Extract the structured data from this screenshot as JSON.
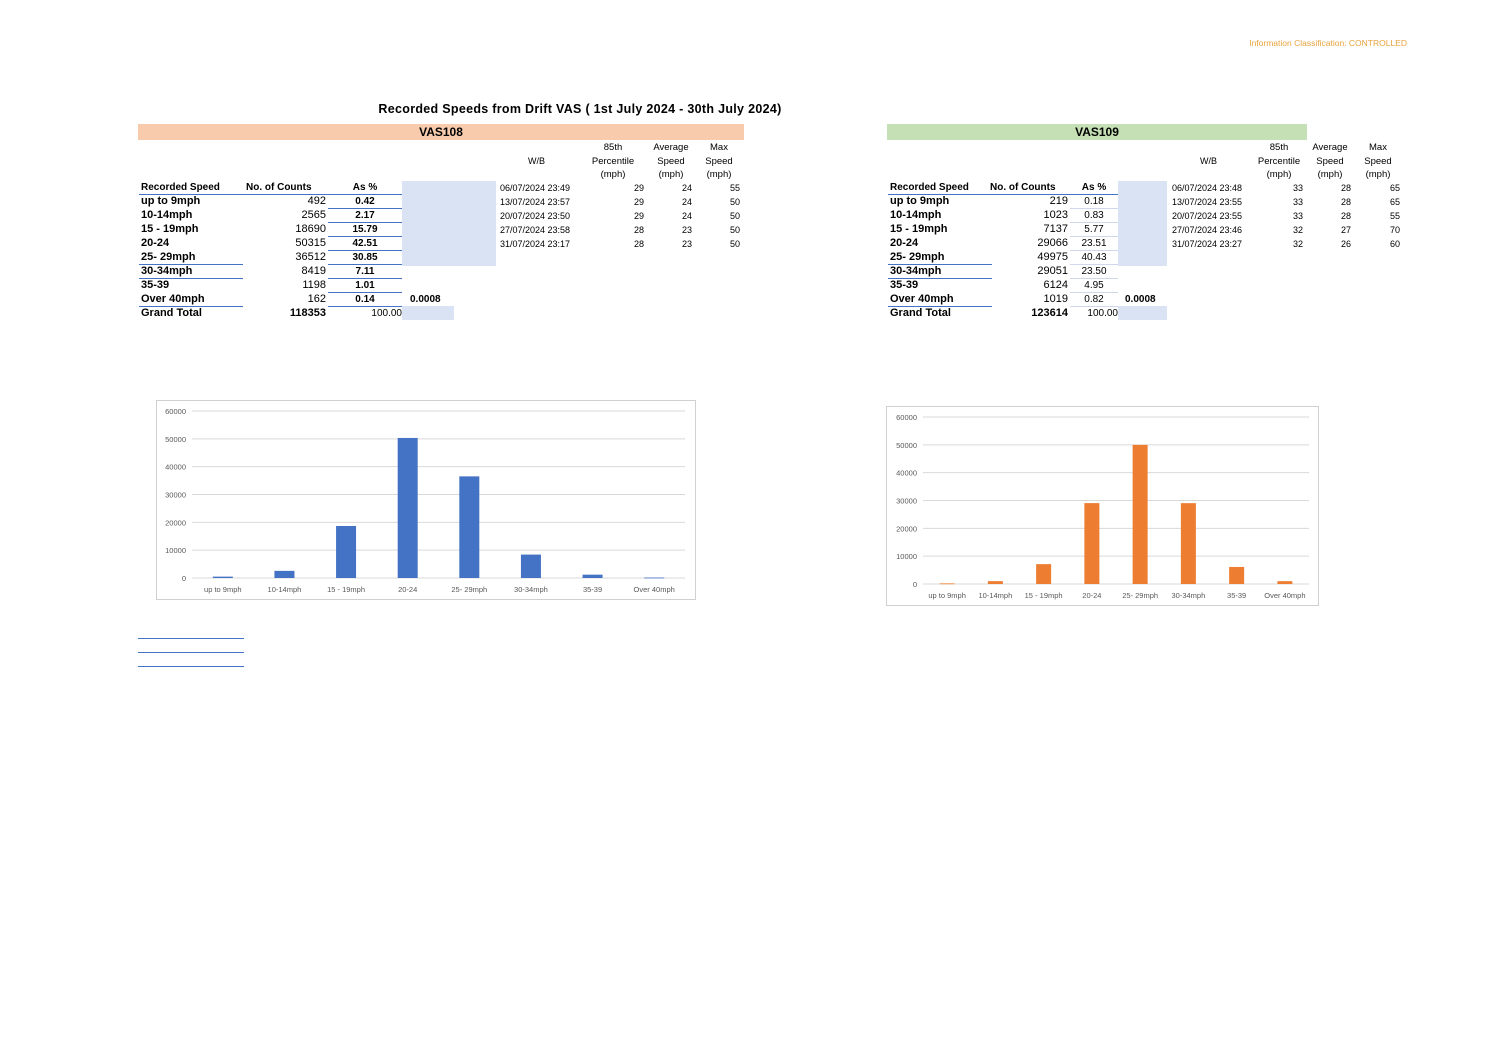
{
  "classification": "Information Classification: CONTROLLED",
  "title": "Recorded Speeds from Drift VAS ( 1st July 2024 - 30th  July 2024)",
  "vas108": {
    "name": "VAS108",
    "header_color": "#f8cbad",
    "col_headers": {
      "speed": "Recorded Speed",
      "counts": "No. of Counts",
      "pct": "As %"
    },
    "rows": [
      {
        "speed": "up to 9mph",
        "count": "492",
        "pct": "0.42"
      },
      {
        "speed": "10-14mph",
        "count": "2565",
        "pct": "2.17"
      },
      {
        "speed": "15 - 19mph",
        "count": "18690",
        "pct": "15.79"
      },
      {
        "speed": "20-24",
        "count": "50315",
        "pct": "42.51"
      },
      {
        "speed": "25- 29mph",
        "count": "36512",
        "pct": "30.85"
      },
      {
        "speed": "30-34mph",
        "count": "8419",
        "pct": "7.11"
      },
      {
        "speed": "35-39",
        "count": "1198",
        "pct": "1.01"
      },
      {
        "speed": "Over 40mph",
        "count": "162",
        "pct": "0.14"
      }
    ],
    "extra_value": "0.0008",
    "grand_total": {
      "label": "Grand Total",
      "count": "118353",
      "pct": "100.00"
    },
    "wb": {
      "label": "W/B",
      "h85": [
        "85th",
        "Percentile",
        "(mph)"
      ],
      "havg": [
        "Average",
        "Speed",
        "(mph)"
      ],
      "hmax": [
        "Max",
        "Speed",
        "(mph)"
      ],
      "rows": [
        {
          "date": "06/07/2024 23:49",
          "p85": "29",
          "avg": "24",
          "max": "55"
        },
        {
          "date": "13/07/2024 23:57",
          "p85": "29",
          "avg": "24",
          "max": "50"
        },
        {
          "date": "20/07/2024 23:50",
          "p85": "29",
          "avg": "24",
          "max": "50"
        },
        {
          "date": "27/07/2024 23:58",
          "p85": "28",
          "avg": "23",
          "max": "50"
        },
        {
          "date": "31/07/2024 23:17",
          "p85": "28",
          "avg": "23",
          "max": "50"
        }
      ]
    }
  },
  "vas109": {
    "name": "VAS109",
    "header_color": "#c5e0b4",
    "col_headers": {
      "speed": "Recorded Speed",
      "counts": "No. of Counts",
      "pct": "As %"
    },
    "rows": [
      {
        "speed": "up to 9mph",
        "count": "219",
        "pct": "0.18"
      },
      {
        "speed": "10-14mph",
        "count": "1023",
        "pct": "0.83"
      },
      {
        "speed": "15 - 19mph",
        "count": "7137",
        "pct": "5.77"
      },
      {
        "speed": "20-24",
        "count": "29066",
        "pct": "23.51"
      },
      {
        "speed": "25- 29mph",
        "count": "49975",
        "pct": "40.43"
      },
      {
        "speed": "30-34mph",
        "count": "29051",
        "pct": "23.50"
      },
      {
        "speed": "35-39",
        "count": "6124",
        "pct": "4.95"
      },
      {
        "speed": "Over 40mph",
        "count": "1019",
        "pct": "0.82"
      }
    ],
    "extra_value": "0.0008",
    "grand_total": {
      "label": "Grand Total",
      "count": "123614",
      "pct": "100.00"
    },
    "wb": {
      "label": "W/B",
      "h85": [
        "85th",
        "Percentile",
        "(mph)"
      ],
      "havg": [
        "Average",
        "Speed",
        "(mph)"
      ],
      "hmax": [
        "Max",
        "Speed",
        "(mph)"
      ],
      "rows": [
        {
          "date": "06/07/2024 23:48",
          "p85": "33",
          "avg": "28",
          "max": "65"
        },
        {
          "date": "13/07/2024 23:55",
          "p85": "33",
          "avg": "28",
          "max": "65"
        },
        {
          "date": "20/07/2024 23:55",
          "p85": "33",
          "avg": "28",
          "max": "55"
        },
        {
          "date": "27/07/2024 23:46",
          "p85": "32",
          "avg": "27",
          "max": "70"
        },
        {
          "date": "31/07/2024 23:27",
          "p85": "32",
          "avg": "26",
          "max": "60"
        }
      ]
    }
  },
  "chart_data": [
    {
      "type": "bar",
      "title": "",
      "categories": [
        "up to 9mph",
        "10-14mph",
        "15 - 19mph",
        "20-24",
        "25- 29mph",
        "30-34mph",
        "35-39",
        "Over 40mph"
      ],
      "values": [
        492,
        2565,
        18690,
        50315,
        36512,
        8419,
        1198,
        162
      ],
      "ylim": [
        0,
        60000
      ],
      "yticks": [
        "0",
        "10000",
        "20000",
        "30000",
        "40000",
        "50000",
        "60000"
      ],
      "color": "#4472c4",
      "grid": true
    },
    {
      "type": "bar",
      "title": "",
      "categories": [
        "up to 9mph",
        "10-14mph",
        "15 - 19mph",
        "20-24",
        "25- 29mph",
        "30-34mph",
        "35-39",
        "Over 40mph"
      ],
      "values": [
        219,
        1023,
        7137,
        29066,
        49975,
        29051,
        6124,
        1019
      ],
      "ylim": [
        0,
        60000
      ],
      "yticks": [
        "0",
        "10000",
        "20000",
        "30000",
        "40000",
        "50000",
        "60000"
      ],
      "color": "#ed7d31",
      "grid": true
    }
  ]
}
